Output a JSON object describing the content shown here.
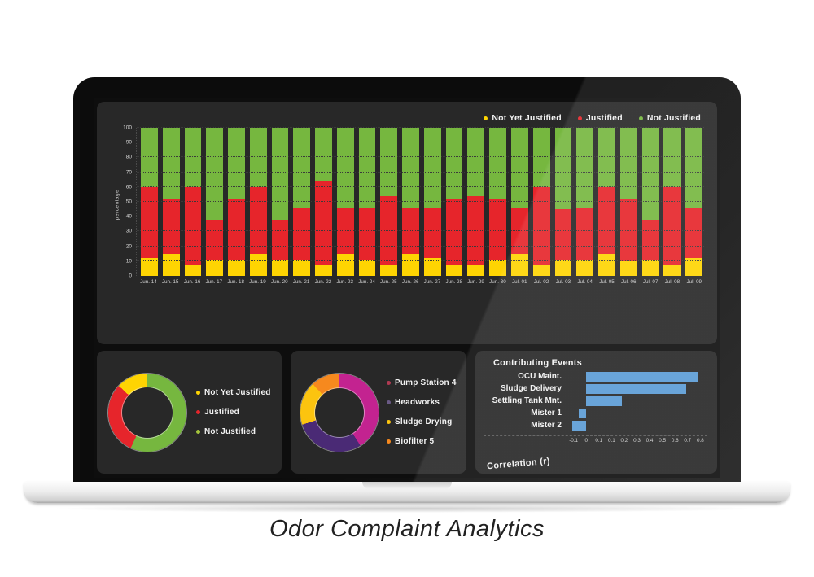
{
  "caption": "Odor Complaint Analytics",
  "colors": {
    "yellow": "#fed402",
    "red": "#e6252b",
    "green": "#76b73f",
    "blue": "#5b9bd5",
    "magenta": "#c32390",
    "purple": "#4a2a75",
    "gold": "#fcc40f",
    "orange": "#f6891e"
  },
  "chart_data": [
    {
      "id": "daily-justification-stacked-bars",
      "type": "bar",
      "stacked": true,
      "ylabel": "percentage",
      "ylim": [
        0,
        100
      ],
      "yticks": [
        0,
        10,
        20,
        30,
        40,
        50,
        60,
        70,
        80,
        90,
        100
      ],
      "grid": true,
      "legend_position": "top-right",
      "legend": [
        {
          "label": "Not Yet Justified",
          "color": "#fed402"
        },
        {
          "label": "Justified",
          "color": "#e6252b"
        },
        {
          "label": "Not Justified",
          "color": "#76b73f"
        }
      ],
      "categories": [
        "Jun. 14",
        "Jun. 15",
        "Jun. 16",
        "Jun. 17",
        "Jun. 18",
        "Jun. 19",
        "Jun. 20",
        "Jun. 21",
        "Jun. 22",
        "Jun. 23",
        "Jun. 24",
        "Jun. 25",
        "Jun. 26",
        "Jun. 27",
        "Jun. 28",
        "Jun. 29",
        "Jun. 30",
        "Jul. 01",
        "Jul. 02",
        "Jul. 03",
        "Jul. 04",
        "Jul. 05",
        "Jul. 06",
        "Jul. 07",
        "Jul. 08",
        "Jul. 09"
      ],
      "series": [
        {
          "name": "Not Yet Justified",
          "color": "#fed402",
          "values": [
            12,
            15,
            7,
            11,
            11,
            15,
            11,
            11,
            7,
            15,
            11,
            7,
            15,
            12,
            7,
            7,
            11,
            15,
            7,
            11,
            11,
            15,
            10,
            11,
            7,
            12
          ]
        },
        {
          "name": "Justified",
          "color": "#e6252b",
          "values": [
            48,
            37,
            53,
            27,
            41,
            45,
            27,
            35,
            57,
            31,
            35,
            47,
            31,
            34,
            45,
            47,
            41,
            31,
            53,
            34,
            35,
            45,
            42,
            27,
            53,
            34
          ]
        },
        {
          "name": "Not Justified",
          "color": "#76b73f",
          "values": [
            40,
            48,
            40,
            62,
            48,
            40,
            62,
            54,
            36,
            54,
            54,
            46,
            54,
            54,
            48,
            46,
            48,
            54,
            40,
            55,
            54,
            40,
            48,
            62,
            40,
            54
          ]
        }
      ]
    },
    {
      "id": "justification-share-donut",
      "type": "pie",
      "donut": true,
      "slices": [
        {
          "label": "Not Justified",
          "color": "#76b73f",
          "value": 57
        },
        {
          "label": "Justified",
          "color": "#e6252b",
          "value": 30
        },
        {
          "label": "Not Yet Justified",
          "color": "#fed402",
          "value": 13
        }
      ],
      "legend": [
        {
          "label": "Not Yet Justified",
          "color": "#fed402"
        },
        {
          "label": "Justified",
          "color": "#e6252b"
        },
        {
          "label": "Not Justified",
          "color": "#a4c43c"
        }
      ]
    },
    {
      "id": "complaint-source-donut",
      "type": "pie",
      "donut": true,
      "slices": [
        {
          "label": "Pump Station 4",
          "color": "#c32390",
          "value": 41
        },
        {
          "label": "Headworks",
          "color": "#4a2a75",
          "value": 29
        },
        {
          "label": "Sludge Drying",
          "color": "#fcc40f",
          "value": 18
        },
        {
          "label": "Biofilter 5",
          "color": "#f6891e",
          "value": 12
        }
      ],
      "legend": [
        {
          "label": "Pump Station 4",
          "color": "#b03a52"
        },
        {
          "label": "Headworks",
          "color": "#6a5a86"
        },
        {
          "label": "Sludge Drying",
          "color": "#fcc40f"
        },
        {
          "label": "Biofilter 5",
          "color": "#f6891e"
        }
      ]
    },
    {
      "id": "contributing-events-hbar",
      "type": "bar",
      "orientation": "horizontal",
      "title": "Contributing Events",
      "xlabel": "Correlation (r)",
      "xlim": [
        -0.15,
        0.85
      ],
      "xticks": [
        "-0.1",
        "0",
        "0.1",
        "0.1",
        "0.2",
        "0.3",
        "0.4",
        "0.5",
        "0.6",
        "0.7",
        "0.8"
      ],
      "bar_color": "#5b9bd5",
      "categories": [
        "OCU Maint.",
        "Sludge Delivery",
        "Settling Tank Mnt.",
        "Mister 1",
        "Mister 2"
      ],
      "values": [
        0.78,
        0.7,
        0.25,
        -0.05,
        -0.1
      ]
    }
  ]
}
